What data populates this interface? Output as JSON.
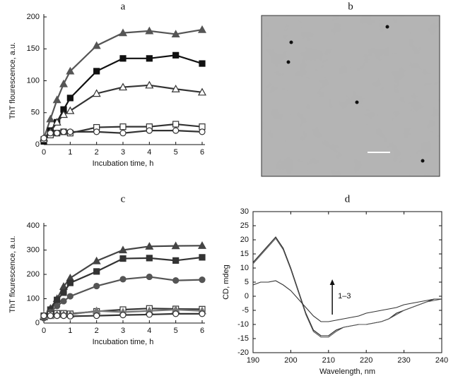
{
  "chart_data": [
    {
      "type": "line",
      "title": "a",
      "x_label": "Incubation time, h",
      "y_label": "ThT flourescence, a.u.",
      "x": [
        0,
        0.25,
        0.5,
        0.75,
        1,
        2,
        3,
        4,
        5,
        6
      ],
      "xlim": [
        0,
        6
      ],
      "xticks": [
        0,
        1,
        2,
        3,
        4,
        5,
        6
      ],
      "ylim": [
        0,
        200
      ],
      "yticks": [
        0,
        50,
        100,
        150,
        200
      ],
      "series": [
        {
          "marker": "triangle",
          "filled": true,
          "color": "#555555",
          "values": [
            10,
            40,
            70,
            95,
            115,
            155,
            175,
            178,
            173,
            180
          ]
        },
        {
          "marker": "square",
          "filled": true,
          "color": "#111111",
          "values": [
            5,
            22,
            35,
            55,
            73,
            115,
            135,
            135,
            140,
            127
          ]
        },
        {
          "marker": "triangle",
          "filled": false,
          "color": "#333333",
          "values": [
            10,
            20,
            35,
            47,
            53,
            80,
            90,
            93,
            87,
            82
          ]
        },
        {
          "marker": "square",
          "filled": false,
          "color": "#333333",
          "values": [
            8,
            15,
            18,
            20,
            18,
            27,
            28,
            28,
            32,
            28
          ]
        },
        {
          "marker": "circle",
          "filled": false,
          "color": "#333333",
          "values": [
            10,
            18,
            18,
            20,
            20,
            20,
            18,
            22,
            22,
            20
          ]
        }
      ]
    },
    {
      "type": "image",
      "title": "b"
    },
    {
      "type": "line",
      "title": "c",
      "x_label": "Incubation time, h",
      "y_label": "ThT flourescence, a.u.",
      "x": [
        0,
        0.25,
        0.5,
        0.75,
        1,
        2,
        3,
        4,
        5,
        6
      ],
      "xlim": [
        0,
        6
      ],
      "xticks": [
        0,
        1,
        2,
        3,
        4,
        5,
        6
      ],
      "ylim": [
        0,
        400
      ],
      "yticks": [
        0,
        100,
        200,
        300,
        400
      ],
      "series": [
        {
          "marker": "triangle",
          "filled": true,
          "color": "#444444",
          "values": [
            25,
            60,
            100,
            150,
            185,
            255,
            300,
            315,
            317,
            318
          ]
        },
        {
          "marker": "square",
          "filled": true,
          "color": "#333333",
          "values": [
            25,
            55,
            95,
            125,
            165,
            212,
            265,
            267,
            257,
            270
          ]
        },
        {
          "marker": "circle",
          "filled": true,
          "color": "#555555",
          "values": [
            20,
            45,
            70,
            90,
            110,
            152,
            180,
            190,
            175,
            178
          ]
        },
        {
          "marker": "square",
          "filled": false,
          "color": "#333333",
          "values": [
            30,
            35,
            40,
            40,
            38,
            48,
            55,
            60,
            58,
            57
          ]
        },
        {
          "marker": "triangle",
          "filled": true,
          "color": "#777777",
          "values": [
            30,
            30,
            35,
            35,
            35,
            50,
            45,
            50,
            55,
            50
          ]
        },
        {
          "marker": "circle",
          "filled": false,
          "color": "#333333",
          "values": [
            30,
            30,
            30,
            30,
            28,
            30,
            33,
            35,
            38,
            38
          ]
        }
      ]
    },
    {
      "type": "spectrum",
      "title": "d",
      "x_label": "Wavelength, nm",
      "y_label": "CD, mdeg",
      "annotation": "1–3",
      "x": [
        190,
        192,
        194,
        196,
        198,
        200,
        202,
        204,
        206,
        208,
        210,
        212,
        214,
        216,
        218,
        220,
        222,
        224,
        226,
        228,
        230,
        232,
        234,
        236,
        238,
        240
      ],
      "xlim": [
        190,
        240
      ],
      "xticks": [
        190,
        200,
        210,
        220,
        230,
        240
      ],
      "ylim": [
        -20,
        30
      ],
      "yticks": [
        -20,
        -15,
        -10,
        -5,
        0,
        5,
        10,
        15,
        20,
        25,
        30
      ],
      "series": [
        {
          "color": "#222222",
          "values": [
            12,
            15,
            18,
            21,
            17,
            10,
            2,
            -6,
            -12,
            -14,
            -14,
            -12,
            -11,
            -10.5,
            -10,
            -10,
            -9.5,
            -9,
            -8,
            -6,
            -5,
            -4,
            -3,
            -2,
            -1,
            -1
          ]
        },
        {
          "color": "#555555",
          "values": [
            11.5,
            14.5,
            17.5,
            20.5,
            16.5,
            9.5,
            1.5,
            -6.5,
            -12.5,
            -14.5,
            -14.5,
            -12.5,
            -11,
            -10.5,
            -10,
            -10,
            -9.5,
            -9,
            -8,
            -6.5,
            -5,
            -4,
            -3,
            -2,
            -1.5,
            -1
          ]
        },
        {
          "color": "#333333",
          "values": [
            4,
            5,
            5,
            5.5,
            4,
            2,
            -1,
            -4,
            -7,
            -9,
            -9,
            -8.5,
            -8,
            -7.5,
            -7,
            -6,
            -5.5,
            -5,
            -4.5,
            -4,
            -3,
            -2.5,
            -2,
            -1.5,
            -1,
            -1
          ]
        }
      ]
    }
  ]
}
